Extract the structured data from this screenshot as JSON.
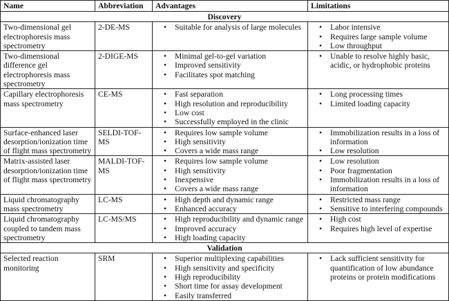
{
  "headers": {
    "name": "Name",
    "abbreviation": "Abbreviation",
    "advantages": "Advantages",
    "limitations": "Limitations"
  },
  "sections": [
    {
      "title": "Discovery",
      "rows": [
        {
          "name": "Two-dimensional gel electrophoresis mass spectrometry",
          "abbr": "2-DE-MS",
          "advantages": [
            "Suitable for analysis of large molecules"
          ],
          "limitations": [
            "Labor intensive",
            "Requires large sample volume",
            "Low throughput"
          ]
        },
        {
          "name": "Two-dimensional difference gel electrophoresis mass spectrometry",
          "abbr": "2-DIGE-MS",
          "advantages": [
            "Minimal gel-to-gel variation",
            "Improved sensitivity",
            "Facilitates spot matching"
          ],
          "limitations": [
            "Unable to resolve highly basic, acidic, or hydrophobic proteins"
          ]
        },
        {
          "name": "Capillary electrophoresis mass spectrometry",
          "abbr": "CE-MS",
          "advantages": [
            "Fast separation",
            "High resolution and reproducibility",
            "Low cost",
            "Successfully employed in the clinic"
          ],
          "limitations": [
            "Long processing times",
            "Limited loading capacity"
          ]
        },
        {
          "name": "Surface-enhanced laser desorption/ionization time of flight mass spectrometry",
          "abbr": "SELDI-TOF-MS",
          "advantages": [
            "Requires low sample volume",
            "High sensitivity",
            "Covers a wide mass range"
          ],
          "limitations": [
            "Immobilization results in a loss of information",
            "Low resolution"
          ]
        },
        {
          "name": "Matrix-assisted laser desorption/ionization time of flight mass spectrometry",
          "abbr": "MALDI-TOF-MS",
          "advantages": [
            "Requires low sample volume",
            "High sensitivity",
            "Inexpensive",
            "Covers a wide mass range"
          ],
          "limitations": [
            "Low resolution",
            "Poor fragmentation",
            "Immobilization results in a loss of information"
          ]
        },
        {
          "name": "Liquid chromatography mass spectrometry",
          "abbr": "LC-MS",
          "advantages": [
            "High depth and dynamic range",
            "Enhanced accuracy"
          ],
          "limitations": [
            "Restricted mass  range",
            "Sensitive to interfering compounds"
          ]
        },
        {
          "name": "Liquid chromatography coupled to tandem mass spectrometry",
          "abbr": "LC-MS/MS",
          "advantages": [
            "High reproducibility and dynamic range",
            "Improved accuracy",
            "High loading capacity"
          ],
          "limitations": [
            "High cost",
            "Requires high level of expertise"
          ]
        }
      ]
    },
    {
      "title": "Validation",
      "rows": [
        {
          "name": "Selected reaction monitoring",
          "abbr": "SRM",
          "advantages": [
            "Superior multiplexing capabilities",
            "High sensitivity and specificity",
            "High reproducibility",
            "Short time for assay development",
            "Easily transferred"
          ],
          "limitations": [
            "Lack sufficient sensitivity for quantification of low abundance proteins or protein modifications"
          ]
        }
      ]
    }
  ]
}
